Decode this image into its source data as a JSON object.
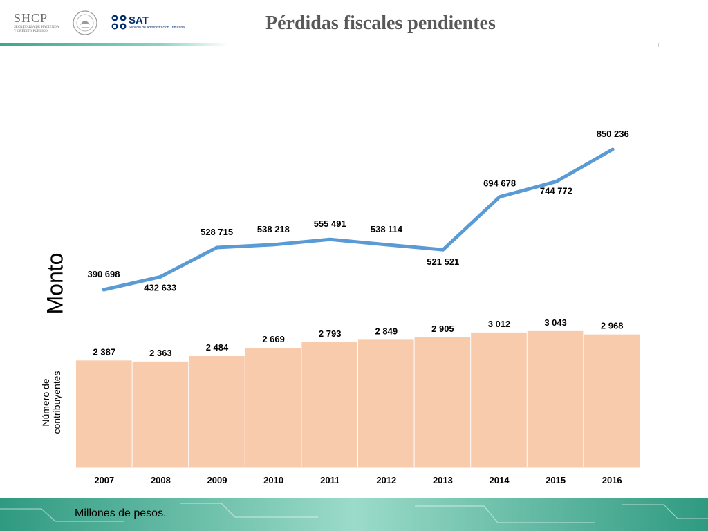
{
  "header": {
    "title": "Pérdidas fiscales pendientes",
    "logos": {
      "shcp_name": "SHCP",
      "shcp_sub_1": "SECRETARÍA DE HACIENDA",
      "shcp_sub_2": "Y CRÉDITO PÚBLICO",
      "sat_name": "SAT",
      "sat_sub": "Servicio de Administración Tributaria"
    },
    "accent_color": "#3aa68f",
    "sat_color": "#002f6c"
  },
  "footer": {
    "note": "Millones de pesos."
  },
  "chart_data": {
    "type": "bar+line",
    "categories": [
      "2007",
      "2008",
      "2009",
      "2010",
      "2011",
      "2012",
      "2013",
      "2014",
      "2015",
      "2016"
    ],
    "line": {
      "axis_label": "Monto",
      "values": [
        390698,
        432633,
        528715,
        538218,
        555491,
        538114,
        521521,
        694678,
        744772,
        850236
      ],
      "labels": [
        "390 698",
        "432 633",
        "528 715",
        "538 218",
        "555 491",
        "538 114",
        "521 521",
        "694 678",
        "744 772",
        "850 236"
      ],
      "color": "#5b9bd5"
    },
    "bars": {
      "axis_label_line1": "Número de",
      "axis_label_line2": "contribuyentes",
      "values": [
        2387,
        2363,
        2484,
        2669,
        2793,
        2849,
        2905,
        3012,
        3043,
        2968
      ],
      "labels": [
        "2 387",
        "2 363",
        "2 484",
        "2 669",
        "2 793",
        "2 849",
        "2 905",
        "3 012",
        "3 043",
        "2 968"
      ],
      "color": "#f8cbad"
    }
  }
}
